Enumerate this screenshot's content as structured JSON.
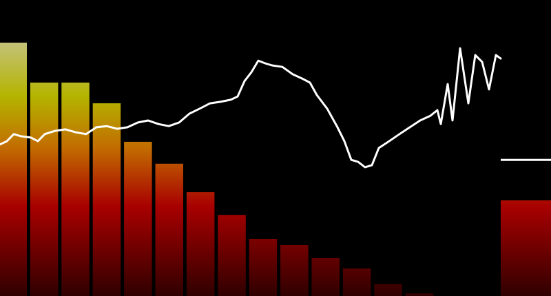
{
  "chart_data": {
    "type": "bar",
    "ylim": [
      0,
      100
    ],
    "values": [
      85.6,
      72.1,
      72.1,
      65.1,
      52.1,
      44.7,
      35.1,
      27.4,
      19.3,
      17.2,
      12.8,
      9.3,
      4.0,
      0.9,
      0,
      0
    ],
    "colors": [
      "#c4c27a",
      "#b4b400",
      "#c26c00",
      "#a80000",
      "#300000"
    ],
    "line": {
      "color": "#ffffff",
      "xlim": [
        0,
        800
      ],
      "x": [
        0,
        10,
        20,
        30,
        45,
        55,
        65,
        80,
        95,
        110,
        125,
        140,
        155,
        170,
        185,
        200,
        215,
        230,
        245,
        260,
        275,
        290,
        305,
        320,
        335,
        345,
        355,
        365,
        375,
        385,
        395,
        410,
        425,
        440,
        450,
        460,
        475,
        490,
        500,
        510,
        520,
        530,
        540,
        550,
        565,
        580,
        595,
        610,
        625,
        635,
        640,
        650,
        657,
        668,
        680,
        690,
        700,
        710,
        720,
        727
      ],
      "values": [
        51.2,
        52.3,
        54.7,
        54.0,
        53.5,
        52.3,
        54.7,
        55.8,
        56.3,
        55.3,
        54.7,
        57.0,
        57.4,
        56.5,
        57.0,
        58.6,
        59.3,
        58.1,
        57.4,
        58.6,
        61.6,
        63.3,
        65.1,
        65.6,
        66.3,
        67.4,
        72.6,
        75.6,
        79.5,
        78.6,
        77.9,
        77.4,
        74.9,
        73.3,
        72.1,
        67.9,
        63.3,
        57.0,
        52.3,
        46.0,
        45.3,
        43.5,
        44.2,
        50.0,
        52.3,
        54.7,
        57.0,
        59.3,
        60.9,
        62.8,
        58.1,
        71.6,
        59.3,
        83.7,
        65.1,
        81.4,
        79.1,
        69.8,
        81.4,
        80.2
      ]
    },
    "meter": {
      "value": 32.3,
      "peak": 46.0
    }
  }
}
